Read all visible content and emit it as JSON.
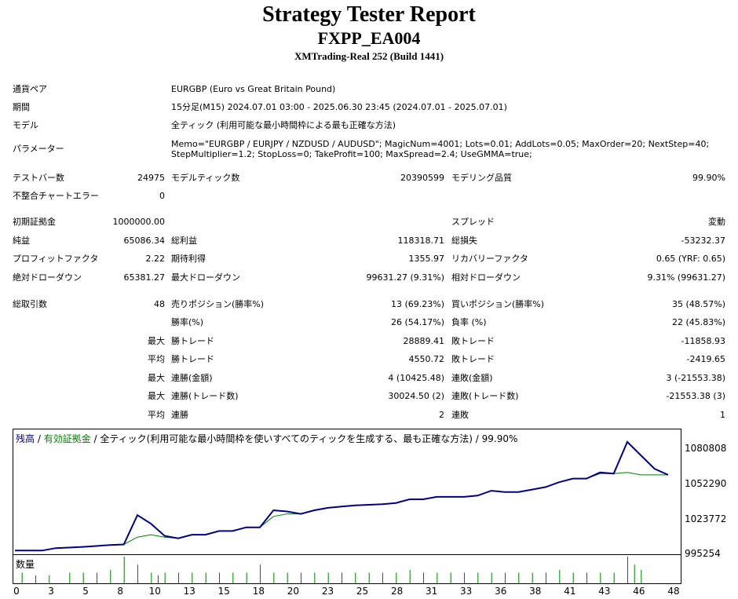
{
  "report": {
    "title": "Strategy Tester Report",
    "ea_name": "FXPP_EA004",
    "server": "XMTrading-Real 252 (Build 1441)"
  },
  "settings": {
    "symbol_label": "通貨ペア",
    "symbol_value": "EURGBP (Euro vs Great Britain Pound)",
    "period_label": "期間",
    "period_value": "15分足(M15) 2024.07.01 03:00 - 2025.06.30 23:45 (2024.07.01 - 2025.07.01)",
    "model_label": "モデル",
    "model_value": "全ティック (利用可能な最小時間枠による最も正確な方法)",
    "params_label": "パラメーター",
    "params_line1": "Memo=\"EURGBP / EURJPY / NZDUSD / AUDUSD\"; MagicNum=4001; Lots=0.01; AddLots=0.05; MaxOrder=20; NextStep=40;",
    "params_line2": "StepMultiplier=1.2; StopLoss=0; TakeProfit=100; MaxSpread=2.4; UseGMMA=true;"
  },
  "stats": {
    "bars_label": "テストバー数",
    "bars_value": "24975",
    "ticks_label": "モデルティック数",
    "ticks_value": "20390599",
    "quality_label": "モデリング品質",
    "quality_value": "99.90%",
    "mismatch_label": "不整合チャートエラー",
    "mismatch_value": "0",
    "deposit_label": "初期証拠金",
    "deposit_value": "1000000.00",
    "spread_label": "スプレッド",
    "spread_value": "変動",
    "net_label": "純益",
    "net_value": "65086.34",
    "gross_profit_label": "総利益",
    "gross_profit_value": "118318.71",
    "gross_loss_label": "総損失",
    "gross_loss_value": "-53232.37",
    "pf_label": "プロフィットファクタ",
    "pf_value": "2.22",
    "expected_label": "期待利得",
    "expected_value": "1355.97",
    "recovery_label": "リカバリーファクタ",
    "recovery_value": "0.65 (YRF: 0.65)",
    "abs_dd_label": "絶対ドローダウン",
    "abs_dd_value": "65381.27",
    "max_dd_label": "最大ドローダウン",
    "max_dd_value": "99631.27 (9.31%)",
    "rel_dd_label": "相対ドローダウン",
    "rel_dd_value": "9.31% (99631.27)",
    "trades_label": "総取引数",
    "trades_value": "48",
    "short_label": "売りポジション(勝率%)",
    "short_value": "13 (69.23%)",
    "long_label": "買いポジション(勝率%)",
    "long_value": "35 (48.57%)",
    "winrate_label": "勝率(%)",
    "winrate_value": "26 (54.17%)",
    "lossrate_label": "負率 (%)",
    "lossrate_value": "22 (45.83%)",
    "max_label_1": "最大",
    "max_win_label": "勝トレード",
    "max_win_value": "28889.41",
    "max_loss_label": "敗トレード",
    "max_loss_value": "-11858.93",
    "avg_label_1": "平均",
    "avg_win_label": "勝トレード",
    "avg_win_value": "4550.72",
    "avg_loss_label": "敗トレード",
    "avg_loss_value": "-2419.65",
    "max_label_2": "最大",
    "cons_win_amt_label": "連勝(金額)",
    "cons_win_amt_value": "4 (10425.48)",
    "cons_loss_amt_label": "連敗(金額)",
    "cons_loss_amt_value": "3 (-21553.38)",
    "max_label_3": "最大",
    "cons_win_cnt_label": "連勝(トレード数)",
    "cons_win_cnt_value": "30024.50 (2)",
    "cons_loss_cnt_label": "連敗(トレード数)",
    "cons_loss_cnt_value": "-21553.38 (3)",
    "avg_label_2": "平均",
    "avg_cons_win_label": "連勝",
    "avg_cons_win_value": "2",
    "avg_cons_loss_label": "連敗",
    "avg_cons_loss_value": "1"
  },
  "chart_legend": {
    "balance": "残高",
    "sep1": " / ",
    "equity": "有効証拠金",
    "rest": " / 全ティック(利用可能な最小時間枠を使いすべてのティックを生成する、最も正確な方法) / 99.90%"
  },
  "volume_label": "数量",
  "chart_data": {
    "type": "line",
    "x_ticks": [
      "0",
      "3",
      "5",
      "8",
      "10",
      "13",
      "15",
      "18",
      "20",
      "23",
      "25",
      "28",
      "31",
      "33",
      "36",
      "38",
      "41",
      "43",
      "46",
      "48"
    ],
    "y_ticks": [
      "1080808",
      "1052290",
      "1023772",
      "995254"
    ],
    "ylim": [
      995254,
      1080808
    ],
    "xlim": [
      0,
      48
    ],
    "colors": {
      "balance": "#000080",
      "equity": "#008000",
      "volume": "#008000"
    },
    "series": [
      {
        "name": "残高",
        "x": [
          0,
          2,
          3,
          5,
          7,
          8,
          9,
          10,
          11,
          12,
          13,
          14,
          15,
          16,
          17,
          18,
          19,
          20,
          21,
          22,
          23,
          24,
          25,
          26,
          27,
          28,
          29,
          30,
          31,
          32,
          33,
          34,
          35,
          36,
          37,
          38,
          39,
          40,
          41,
          42,
          43,
          44,
          45,
          46,
          47,
          48
        ],
        "values": [
          997000,
          997000,
          999000,
          1000000,
          1001500,
          1002000,
          1026000,
          1019000,
          1009000,
          1007000,
          1010000,
          1010000,
          1013000,
          1013000,
          1016000,
          1016000,
          1030000,
          1029000,
          1027000,
          1030000,
          1032000,
          1033000,
          1034000,
          1034500,
          1035000,
          1036000,
          1039000,
          1039000,
          1041000,
          1041000,
          1041000,
          1042000,
          1046000,
          1045000,
          1045000,
          1047000,
          1049000,
          1053000,
          1056000,
          1056000,
          1061000,
          1060000,
          1086000,
          1075000,
          1064000,
          1059000
        ]
      },
      {
        "name": "有効証拠金",
        "x": [
          0,
          2,
          3,
          5,
          7,
          8,
          9,
          10,
          11,
          12,
          13,
          14,
          15,
          16,
          17,
          18,
          19,
          20,
          21,
          22,
          23,
          24,
          25,
          26,
          27,
          28,
          29,
          30,
          31,
          32,
          33,
          34,
          35,
          36,
          37,
          38,
          39,
          40,
          41,
          42,
          43,
          44,
          45,
          46,
          47,
          48
        ],
        "values": [
          997000,
          997000,
          999000,
          1000000,
          1001500,
          1002000,
          1008000,
          1010000,
          1008000,
          1007000,
          1010000,
          1010000,
          1013000,
          1013000,
          1016000,
          1016000,
          1025000,
          1027000,
          1027000,
          1030000,
          1032000,
          1033000,
          1034000,
          1034500,
          1035000,
          1036000,
          1039000,
          1039000,
          1041000,
          1041000,
          1041000,
          1042000,
          1046000,
          1045000,
          1045000,
          1047000,
          1049000,
          1053000,
          1056000,
          1056000,
          1060000,
          1060000,
          1061000,
          1059000,
          1059000,
          1059000
        ]
      }
    ],
    "volume": {
      "x": [
        0.5,
        1.5,
        2.5,
        4,
        5,
        6,
        7,
        8,
        9,
        10,
        10.5,
        11,
        12,
        13,
        14,
        15,
        16,
        17,
        18,
        19,
        20,
        21,
        22,
        23,
        24,
        25,
        26,
        27,
        28,
        29,
        30,
        31,
        32,
        33,
        34,
        35,
        36,
        37,
        38,
        39,
        40,
        41,
        42,
        43,
        44,
        45,
        45.5,
        46
      ],
      "values": [
        0.4,
        0.3,
        0.3,
        0.4,
        0.4,
        0.4,
        0.5,
        1.0,
        0.7,
        0.4,
        0.3,
        0.4,
        0.4,
        0.4,
        0.4,
        0.4,
        0.4,
        0.4,
        0.7,
        0.4,
        0.4,
        0.4,
        0.4,
        0.4,
        0.4,
        0.4,
        0.4,
        0.4,
        0.4,
        0.5,
        0.4,
        0.4,
        0.4,
        0.4,
        0.4,
        0.4,
        0.4,
        0.4,
        0.4,
        0.4,
        0.5,
        0.4,
        0.4,
        0.4,
        0.4,
        1.0,
        0.7,
        0.5
      ]
    }
  }
}
